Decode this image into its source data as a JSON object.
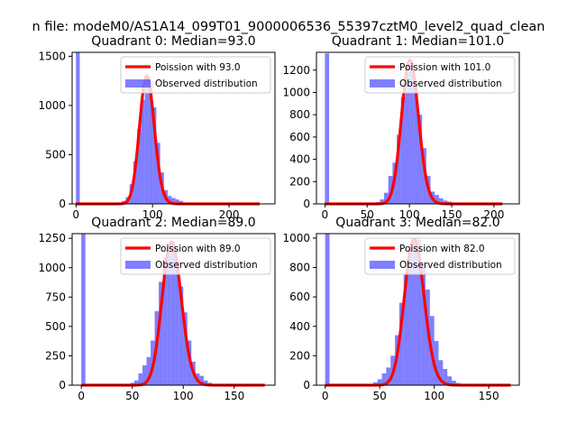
{
  "suptitle": "n file: modeM0/AS1A14_099T01_9000006536_55397cztM0_level2_quad_clean",
  "colors": {
    "fit": "#ff0000",
    "hist": "#0000ff",
    "axis": "#000000"
  },
  "chart_data": [
    {
      "type": "bar",
      "title": "Quadrant 0: Median=93.0",
      "legend": {
        "placement": "top-right",
        "entries": [
          "Poission with 93.0",
          "Observed distribution"
        ]
      },
      "xlim": [
        -5,
        260
      ],
      "ylim": [
        0,
        1540
      ],
      "xticks": [
        0,
        100,
        200
      ],
      "yticks": [
        0,
        500,
        1000,
        1500
      ],
      "bin_width": 5,
      "hist_x": [
        0,
        55,
        60,
        65,
        70,
        75,
        80,
        85,
        90,
        95,
        100,
        105,
        110,
        115,
        120,
        125,
        130,
        135,
        140,
        145,
        150,
        155
      ],
      "hist_y": [
        1540,
        15,
        30,
        70,
        200,
        430,
        760,
        1060,
        1280,
        1250,
        980,
        620,
        320,
        140,
        80,
        60,
        45,
        30,
        15,
        10,
        5,
        3
      ],
      "fit_mean": 93.0,
      "fit_peak": 1300,
      "fit_range": [
        0,
        240
      ]
    },
    {
      "type": "bar",
      "title": "Quadrant 1: Median=101.0",
      "legend": {
        "placement": "top-right",
        "entries": [
          "Poission with 101.0",
          "Observed distribution"
        ]
      },
      "xlim": [
        -10,
        230
      ],
      "ylim": [
        0,
        1360
      ],
      "xticks": [
        0,
        50,
        100,
        150,
        200
      ],
      "yticks": [
        0,
        200,
        400,
        600,
        800,
        1000,
        1200
      ],
      "bin_width": 5,
      "hist_x": [
        0,
        55,
        60,
        65,
        70,
        75,
        80,
        85,
        90,
        95,
        100,
        105,
        110,
        115,
        120,
        125,
        130,
        135,
        140,
        145,
        150,
        155
      ],
      "hist_y": [
        1350,
        5,
        15,
        40,
        100,
        250,
        370,
        620,
        960,
        1180,
        1250,
        1050,
        800,
        500,
        250,
        110,
        80,
        50,
        30,
        20,
        10,
        5
      ],
      "fit_mean": 101.0,
      "fit_peak": 1290,
      "fit_range": [
        0,
        210
      ]
    },
    {
      "type": "bar",
      "title": "Quadrant 2: Median=89.0",
      "legend": {
        "placement": "top-right",
        "entries": [
          "Poission with 89.0",
          "Observed distribution"
        ]
      },
      "xlim": [
        -9,
        190
      ],
      "ylim": [
        0,
        1290
      ],
      "xticks": [
        0,
        50,
        100,
        150
      ],
      "yticks": [
        0,
        250,
        500,
        750,
        1000,
        1250
      ],
      "bin_width": 4,
      "hist_x": [
        0,
        44,
        48,
        52,
        56,
        60,
        64,
        68,
        72,
        76,
        80,
        84,
        88,
        92,
        96,
        100,
        104,
        108,
        112,
        116,
        120,
        124,
        128,
        132
      ],
      "hist_y": [
        1290,
        5,
        20,
        40,
        100,
        170,
        240,
        380,
        630,
        880,
        1090,
        1200,
        1220,
        1060,
        840,
        620,
        380,
        200,
        100,
        80,
        40,
        20,
        10,
        5
      ],
      "fit_mean": 89.0,
      "fit_peak": 1220,
      "fit_range": [
        0,
        180
      ]
    },
    {
      "type": "bar",
      "title": "Quadrant 3: Median=82.0",
      "legend": {
        "placement": "top-right",
        "entries": [
          "Poission with 82.0",
          "Observed distribution"
        ]
      },
      "xlim": [
        -8,
        178
      ],
      "ylim": [
        0,
        1030
      ],
      "xticks": [
        0,
        50,
        100,
        150
      ],
      "yticks": [
        0,
        200,
        400,
        600,
        800,
        1000
      ],
      "bin_width": 4,
      "hist_x": [
        0,
        40,
        44,
        48,
        52,
        56,
        60,
        64,
        68,
        72,
        76,
        80,
        84,
        88,
        92,
        96,
        100,
        104,
        108,
        112,
        116,
        120,
        124
      ],
      "hist_y": [
        1030,
        8,
        20,
        40,
        80,
        120,
        200,
        340,
        560,
        760,
        930,
        1000,
        990,
        820,
        650,
        470,
        300,
        170,
        110,
        60,
        30,
        15,
        5
      ],
      "fit_mean": 82.0,
      "fit_peak": 990,
      "fit_range": [
        0,
        170
      ]
    }
  ]
}
